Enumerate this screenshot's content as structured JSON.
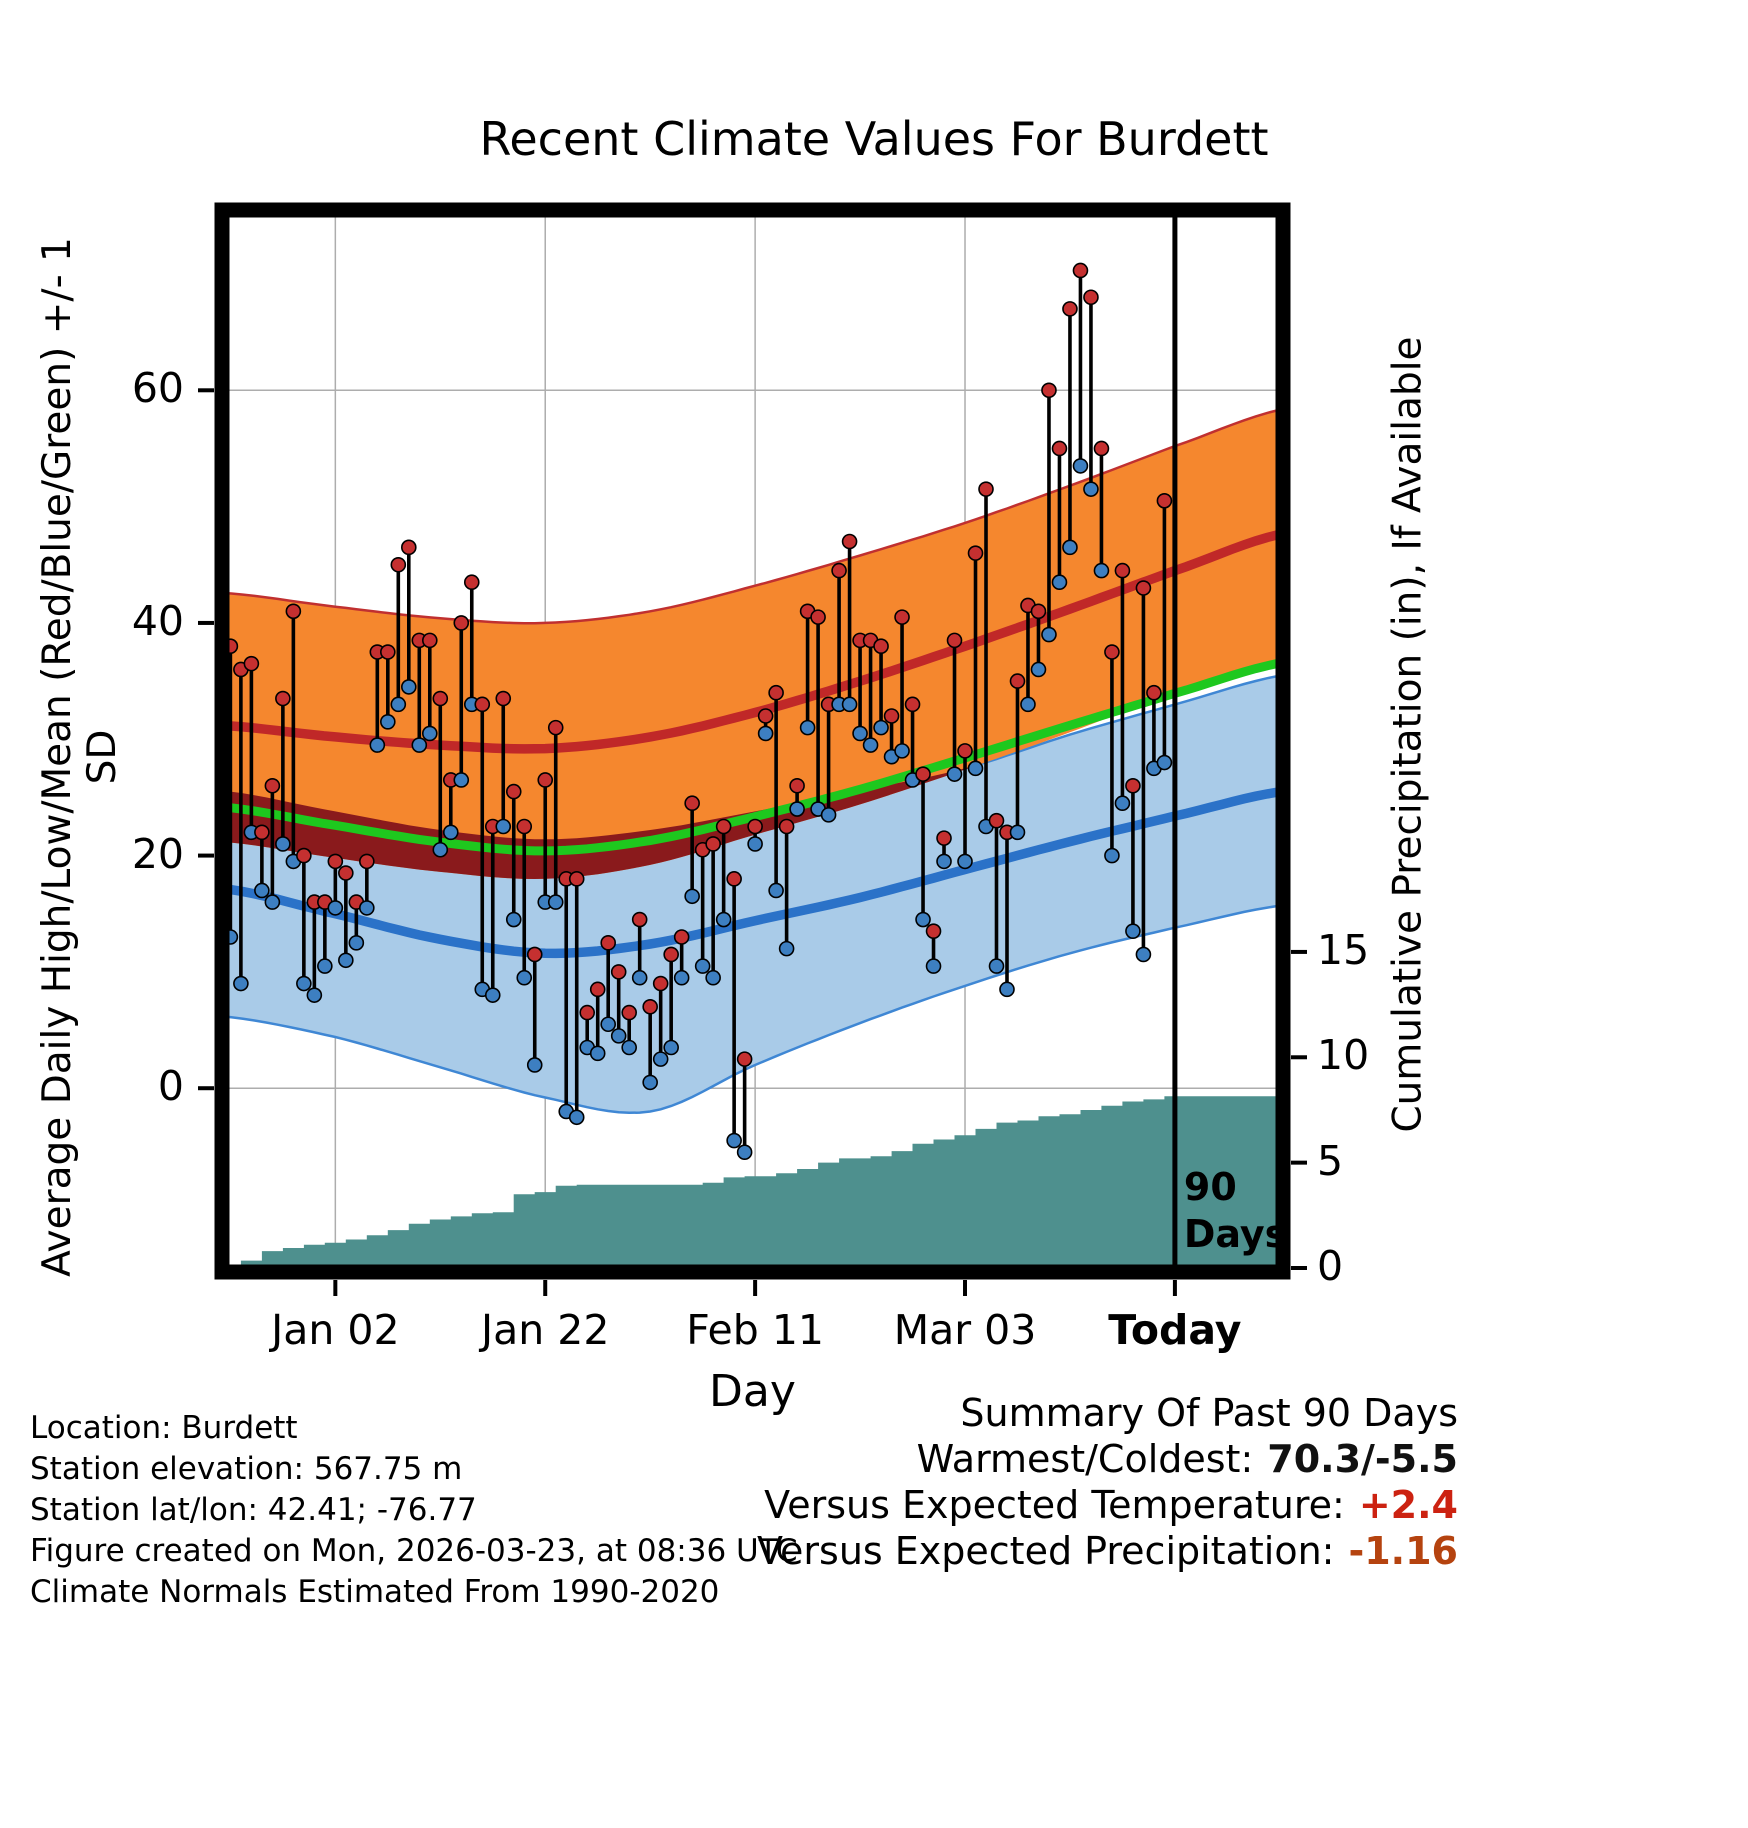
{
  "chart_data": {
    "type": "composite",
    "title": "Recent Climate Values For Burdett",
    "xlabel": "Day",
    "ylabel_left": "Average Daily High/Low/Mean (Red/Blue/Green) +/- 1 SD",
    "ylabel_right": "Cumulative Precipitation (in), If Available",
    "x_ticks": [
      {
        "label": "Jan 02",
        "day": 10,
        "bold": false
      },
      {
        "label": "Jan 22",
        "day": 30,
        "bold": false
      },
      {
        "label": "Feb 11",
        "day": 50,
        "bold": false
      },
      {
        "label": "Mar 03",
        "day": 70,
        "bold": false
      },
      {
        "label": "Today",
        "day": 90,
        "bold": true
      }
    ],
    "left_ticks": [
      {
        "label": "0",
        "value": 0
      },
      {
        "label": "20",
        "value": 20
      },
      {
        "label": "40",
        "value": 40
      },
      {
        "label": "60",
        "value": 60
      }
    ],
    "right_ticks": [
      {
        "label": "0",
        "value": 0
      },
      {
        "label": "5",
        "value": 5
      },
      {
        "label": "10",
        "value": 10
      },
      {
        "label": "15",
        "value": 15
      }
    ],
    "ylim_left": [
      -15.8,
      75.5
    ],
    "ylim_right": [
      -0.19,
      50.21
    ],
    "day_range": [
      -0.8,
      100.3
    ],
    "grid": true,
    "today_line": {
      "day": 90,
      "label_lines": [
        "90",
        "Days"
      ]
    },
    "daily": {
      "days": [
        0,
        1,
        2,
        3,
        4,
        5,
        6,
        7,
        8,
        9,
        10,
        11,
        12,
        13,
        14,
        15,
        16,
        17,
        18,
        19,
        20,
        21,
        22,
        23,
        24,
        25,
        26,
        27,
        28,
        29,
        30,
        31,
        32,
        33,
        34,
        35,
        36,
        37,
        38,
        39,
        40,
        41,
        42,
        43,
        44,
        45,
        46,
        47,
        48,
        49,
        50,
        51,
        52,
        53,
        54,
        55,
        56,
        57,
        58,
        59,
        60,
        61,
        62,
        63,
        64,
        65,
        66,
        67,
        68,
        69,
        70,
        71,
        72,
        73,
        74,
        75,
        76,
        77,
        78,
        79,
        80,
        81,
        82,
        83,
        84,
        85,
        86,
        87,
        88,
        89
      ],
      "high": [
        38,
        36,
        36.5,
        22,
        26,
        33.5,
        41,
        20,
        16,
        16,
        19.5,
        18.5,
        16,
        19.5,
        37.5,
        37.5,
        45,
        46.5,
        38.5,
        38.5,
        33.5,
        26.5,
        40,
        43.5,
        33,
        22.5,
        33.5,
        25.5,
        22.5,
        11.5,
        26.5,
        31,
        18,
        18,
        6.5,
        8.5,
        12.5,
        10,
        6.5,
        14.5,
        7,
        9,
        11.5,
        13,
        24.5,
        20.5,
        21,
        22.5,
        18,
        2.5,
        22.5,
        32,
        34,
        22.5,
        26,
        41,
        40.5,
        33,
        44.5,
        47,
        38.5,
        38.5,
        38,
        32,
        40.5,
        33,
        27,
        13.5,
        21.5,
        38.5,
        29,
        46,
        51.5,
        23,
        22,
        35,
        41.5,
        41,
        60,
        55,
        67,
        70.3,
        68,
        55,
        37.5,
        44.5,
        26,
        43,
        34,
        50.5
      ],
      "low": [
        13,
        9,
        22,
        17,
        16,
        21,
        19.5,
        9,
        8,
        10.5,
        15.5,
        11,
        12.5,
        15.5,
        29.5,
        31.5,
        33,
        34.5,
        29.5,
        30.5,
        20.5,
        22,
        26.5,
        33,
        8.5,
        8,
        22.5,
        14.5,
        9.5,
        2,
        16,
        16,
        -2,
        -2.5,
        3.5,
        3,
        5.5,
        4.5,
        3.5,
        9.5,
        0.5,
        2.5,
        3.5,
        9.5,
        16.5,
        10.5,
        9.5,
        14.5,
        -4.5,
        -5.5,
        21,
        30.5,
        17,
        12,
        24,
        31,
        24,
        23.5,
        33,
        33,
        30.5,
        29.5,
        31,
        28.5,
        29,
        26.5,
        14.5,
        10.5,
        19.5,
        27,
        19.5,
        27.5,
        22.5,
        10.5,
        8.5,
        22,
        33,
        36,
        39,
        43.5,
        46.5,
        53.5,
        51.5,
        44.5,
        20,
        24.5,
        13.5,
        11.5,
        27.5,
        28
      ]
    },
    "normals": {
      "days": [
        -1,
        10,
        20,
        30,
        40,
        50,
        60,
        70,
        80,
        90,
        101
      ],
      "high_mean": [
        31.2,
        30.2,
        29.5,
        29.2,
        30.2,
        32.3,
        35.0,
        38.0,
        41.2,
        44.5,
        47.8
      ],
      "high_plus_sd": [
        42.6,
        41.4,
        40.4,
        40.0,
        41.0,
        43.2,
        45.8,
        48.6,
        51.8,
        55.2,
        58.5
      ],
      "high_minus_sd": [
        21.2,
        19.8,
        18.6,
        18.0,
        19.2,
        21.8,
        24.4,
        27.4,
        30.6,
        34.0,
        37.0
      ],
      "low_mean": [
        17.2,
        15.0,
        12.8,
        11.6,
        12.4,
        14.4,
        16.4,
        18.8,
        21.2,
        23.4,
        25.6
      ],
      "low_plus_sd": [
        25.6,
        23.8,
        22.2,
        21.4,
        22.2,
        23.8,
        25.6,
        27.5,
        30.4,
        33.0,
        35.6
      ],
      "low_minus_sd": [
        6.2,
        4.4,
        1.8,
        -0.8,
        -2.0,
        2.0,
        5.6,
        8.8,
        11.6,
        13.8,
        15.8
      ]
    },
    "precip_cumulative": {
      "step_days": [
        1,
        3,
        5,
        7,
        9,
        11,
        13,
        15,
        17,
        19,
        21,
        23,
        25,
        27,
        29,
        31,
        33,
        45,
        47,
        49,
        52,
        54,
        56,
        58,
        61,
        63,
        65,
        67,
        69,
        71,
        73,
        75,
        77,
        79,
        81,
        83,
        85,
        87,
        89,
        100
      ],
      "values": [
        0.35,
        0.8,
        0.95,
        1.1,
        1.2,
        1.35,
        1.55,
        1.8,
        2.1,
        2.3,
        2.45,
        2.6,
        2.65,
        3.5,
        3.6,
        3.9,
        3.95,
        4.05,
        4.3,
        4.35,
        4.5,
        4.7,
        5.0,
        5.2,
        5.3,
        5.55,
        5.9,
        6.1,
        6.3,
        6.6,
        6.9,
        7.0,
        7.2,
        7.3,
        7.5,
        7.7,
        7.9,
        8.0,
        8.15,
        8.2
      ]
    }
  },
  "colors": {
    "high_band": "#F5872E",
    "high_band_edge": "#C03030",
    "high_mean_line": "#C02828",
    "band_overlap": "#8A1A1C",
    "mean_line": "#1EC81E",
    "low_band": "#A9CBE8",
    "low_band_edge": "#3F87D4",
    "low_mean_line": "#2B72C8",
    "high_dot": "#C53030",
    "low_dot": "#3D7FC1",
    "precip_fill": "#4E908E",
    "grid": "#ADADAD",
    "temp_anomaly": "#CC2211",
    "precip_anomaly": "#B5430F"
  },
  "footer": {
    "lines": [
      "Location: Burdett",
      "Station elevation: 567.75 m",
      "Station lat/lon: 42.41; -76.77",
      "Figure created on Mon, 2026-03-23, at 08:36 UTC",
      "Climate Normals Estimated From 1990-2020"
    ]
  },
  "summary": {
    "title": "Summary Of Past 90 Days",
    "rows": [
      {
        "label": "Warmest/Coldest:",
        "value": "70.3/-5.5",
        "color": "#111111"
      },
      {
        "label": "Versus Expected Temperature:",
        "value": "+2.4",
        "color": "#CC2211"
      },
      {
        "label": "Versus Expected Precipitation:",
        "value": "-1.16",
        "color": "#B5430F"
      }
    ]
  }
}
